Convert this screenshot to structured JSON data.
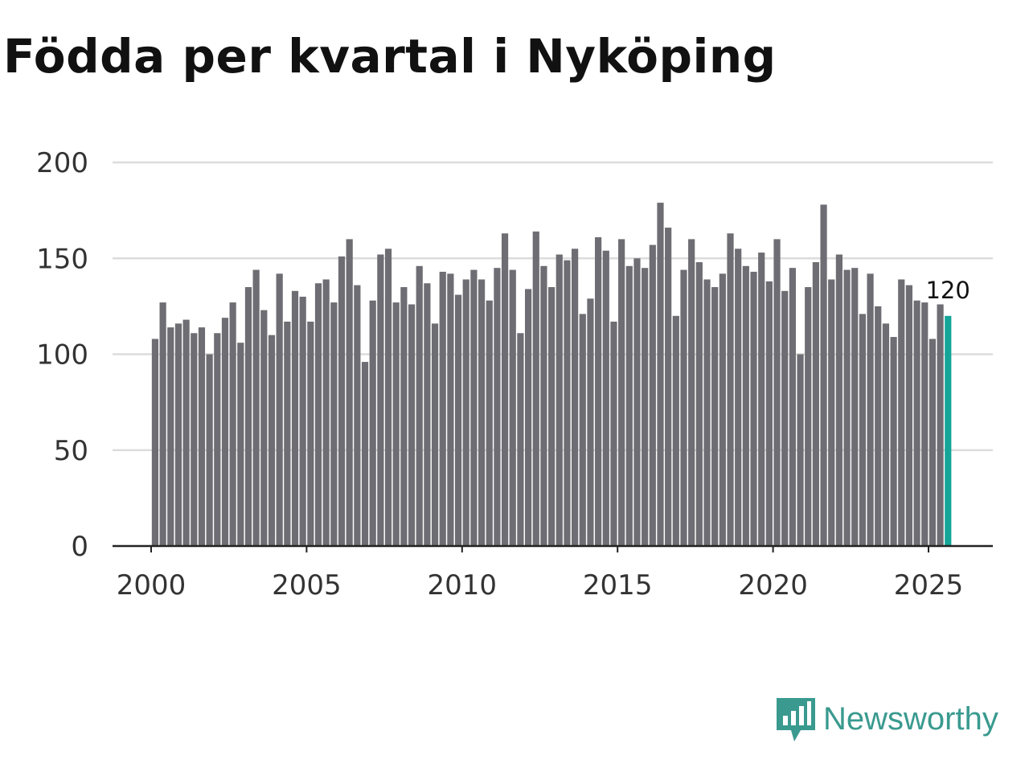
{
  "title": "Födda per kvartal i Nyköping",
  "brand": "Newsworthy",
  "colors": {
    "bar": "#6e6d73",
    "highlight": "#14a599",
    "grid": "#dcdcdc",
    "brand": "#3a9a8f"
  },
  "chart_data": {
    "type": "bar",
    "title": "Födda per kvartal i Nyköping",
    "xlabel": "",
    "ylabel": "",
    "ylim": [
      0,
      200
    ],
    "yticks": [
      "0",
      "50",
      "100",
      "150",
      "200"
    ],
    "xticks": [
      "2000",
      "2005",
      "2010",
      "2015",
      "2020",
      "2025"
    ],
    "start": "2000Q1",
    "grid": true,
    "highlight_label": "120",
    "values": [
      108,
      127,
      114,
      116,
      118,
      111,
      114,
      100,
      111,
      119,
      127,
      106,
      135,
      144,
      123,
      110,
      142,
      117,
      133,
      130,
      117,
      137,
      139,
      127,
      151,
      160,
      136,
      96,
      128,
      152,
      155,
      127,
      135,
      126,
      146,
      137,
      116,
      143,
      142,
      131,
      139,
      144,
      139,
      128,
      145,
      163,
      144,
      111,
      134,
      164,
      146,
      135,
      152,
      149,
      155,
      121,
      129,
      161,
      154,
      117,
      160,
      146,
      150,
      145,
      157,
      179,
      166,
      120,
      144,
      160,
      148,
      139,
      135,
      142,
      163,
      155,
      146,
      143,
      153,
      138,
      160,
      133,
      145,
      100,
      135,
      148,
      178,
      139,
      152,
      144,
      145,
      121,
      142,
      125,
      116,
      109,
      139,
      136,
      128,
      127,
      108,
      126,
      120
    ]
  }
}
